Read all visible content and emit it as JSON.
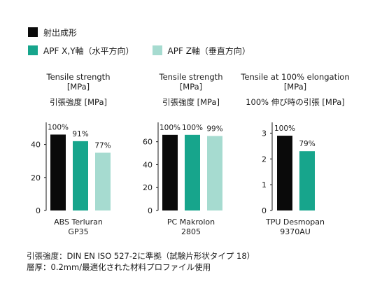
{
  "legend": [
    {
      "label": "射出成形",
      "color": "#0a0a0a"
    },
    {
      "label": "APF X,Y軸（水平方向）",
      "color": "#17a58c"
    },
    {
      "label": "APF Z軸（垂直方向）",
      "color": "#a6dbd0"
    }
  ],
  "footnotes": {
    "line1": "引張強度：DIN EN ISO 527-2に準拠（試験片形状タイプ 18）",
    "line2": "層厚：0.2mm/最適化された材料プロファイル使用"
  },
  "chart_data": [
    {
      "type": "bar",
      "title_en": [
        "Tensile strength",
        "[MPa]"
      ],
      "title_ja": "引張強度 [MPa]",
      "categories": [
        "射出成形",
        "APF X,Y軸（水平方向）",
        "APF Z軸（垂直方向）"
      ],
      "values": [
        46,
        42,
        35
      ],
      "data_labels": [
        "100%",
        "91%",
        "77%"
      ],
      "colors": [
        "#0a0a0a",
        "#17a58c",
        "#a6dbd0"
      ],
      "yticks": [
        "0",
        "20",
        "40"
      ],
      "ylim": [
        0,
        50
      ],
      "xlabel": [
        "ABS Terluran",
        "GP35"
      ]
    },
    {
      "type": "bar",
      "title_en": [
        "Tensile strength",
        "[MPa]"
      ],
      "title_ja": "引張強度 [MPa]",
      "categories": [
        "射出成形",
        "APF X,Y軸（水平方向）",
        "APF Z軸（垂直方向）"
      ],
      "values": [
        66,
        66,
        65
      ],
      "data_labels": [
        "100%",
        "100%",
        "99%"
      ],
      "colors": [
        "#0a0a0a",
        "#17a58c",
        "#a6dbd0"
      ],
      "yticks": [
        "0",
        "20",
        "40",
        "60"
      ],
      "ylim": [
        0,
        72
      ],
      "xlabel": [
        "PC Makrolon",
        "2805"
      ]
    },
    {
      "type": "bar",
      "title_en": [
        "Tensile at 100% elongation",
        "[MPa]"
      ],
      "title_ja": "100% 伸び時の引張 [MPa]",
      "categories": [
        "射出成形",
        "APF X,Y軸（水平方向）"
      ],
      "values": [
        2.9,
        2.3
      ],
      "data_labels": [
        "100%",
        "79%"
      ],
      "colors": [
        "#0a0a0a",
        "#17a58c"
      ],
      "yticks": [
        "0",
        "1",
        "2",
        "3"
      ],
      "ylim": [
        0,
        3.2
      ],
      "xlabel": [
        "TPU Desmopan",
        "9370AU"
      ]
    }
  ]
}
